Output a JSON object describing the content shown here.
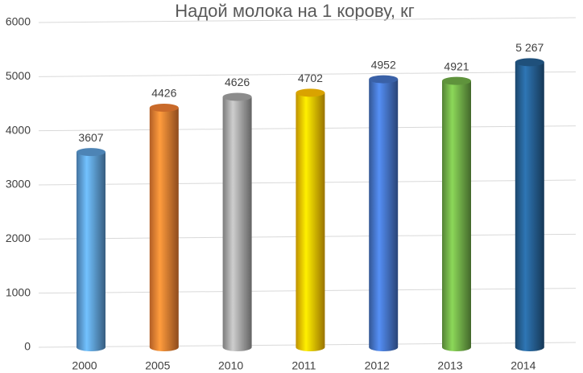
{
  "chart_data": {
    "type": "bar",
    "title": "Надой молока на 1 корову, кг",
    "categories": [
      "2000",
      "2005",
      "2010",
      "2011",
      "2012",
      "2013",
      "2014"
    ],
    "values": [
      3607,
      4426,
      4626,
      4702,
      4952,
      4921,
      5267
    ],
    "value_labels": [
      "3607",
      "4426",
      "4626",
      "4702",
      "4952",
      "4921",
      "5 267"
    ],
    "colors": [
      "#5b9bd5",
      "#ed7d31",
      "#a5a5a5",
      "#ffc000",
      "#4472c4",
      "#70ad47",
      "#255e91"
    ],
    "ylim": [
      0,
      6000
    ],
    "yticks": [
      0,
      1000,
      2000,
      3000,
      4000,
      5000,
      6000
    ],
    "grid": true
  }
}
